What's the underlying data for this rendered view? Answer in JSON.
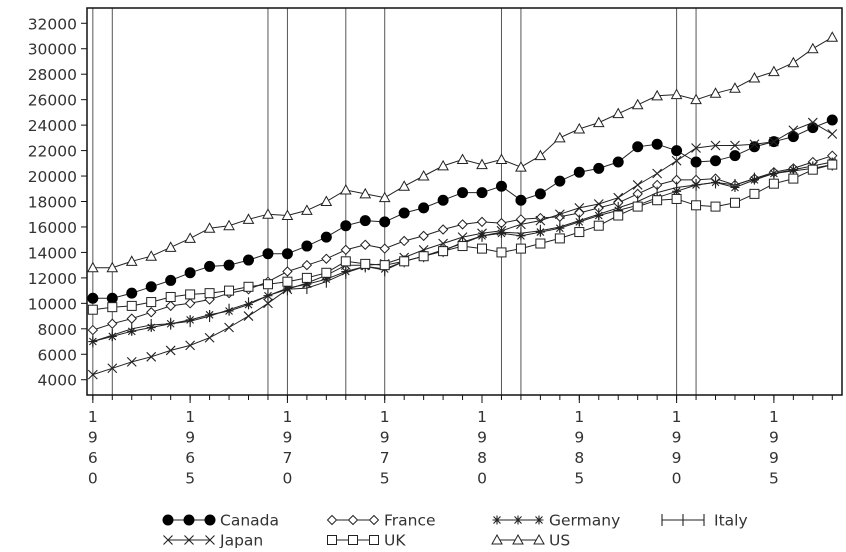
{
  "chart_data": {
    "type": "line",
    "title": "",
    "xlabel": "",
    "ylabel": "",
    "x": [
      1960,
      1961,
      1962,
      1963,
      1964,
      1965,
      1966,
      1967,
      1968,
      1969,
      1970,
      1971,
      1972,
      1973,
      1974,
      1975,
      1976,
      1977,
      1978,
      1979,
      1980,
      1981,
      1982,
      1983,
      1984,
      1985,
      1986,
      1987,
      1988,
      1989,
      1990,
      1991,
      1992,
      1993,
      1994,
      1995,
      1996,
      1997,
      1998
    ],
    "xlim": [
      1959.7,
      1998.5
    ],
    "ylim": [
      2800,
      33200
    ],
    "yticks": [
      4000,
      6000,
      8000,
      10000,
      12000,
      14000,
      16000,
      18000,
      20000,
      22000,
      24000,
      26000,
      28000,
      30000,
      32000
    ],
    "xticks": [
      {
        "value": 1960,
        "label": "1960"
      },
      {
        "value": 1965,
        "label": "1965"
      },
      {
        "value": 1970,
        "label": "1970"
      },
      {
        "value": 1975,
        "label": "1975"
      },
      {
        "value": 1980,
        "label": "1980"
      },
      {
        "value": 1985,
        "label": "1985"
      },
      {
        "value": 1990,
        "label": "1990"
      },
      {
        "value": 1995,
        "label": "1995"
      }
    ],
    "vlines": [
      1960.0,
      1961.0,
      1969.0,
      1970.0,
      1973.0,
      1975.0,
      1981.0,
      1982.0,
      1990.0,
      1991.0
    ],
    "legend_position": "bottom",
    "series": [
      {
        "name": "Canada",
        "marker": "filled-circle",
        "values": [
          10400,
          10400,
          10800,
          11300,
          11800,
          12400,
          12900,
          13000,
          13400,
          13900,
          13900,
          14500,
          15200,
          16100,
          16500,
          16400,
          17100,
          17500,
          18100,
          18700,
          18700,
          19200,
          18100,
          18600,
          19600,
          20300,
          20600,
          21100,
          22300,
          22500,
          22000,
          21100,
          21200,
          21600,
          22300,
          22700,
          23100,
          23800,
          24400
        ]
      },
      {
        "name": "France",
        "marker": "open-diamond",
        "values": [
          7900,
          8400,
          8800,
          9300,
          9800,
          10000,
          10300,
          10800,
          11100,
          11700,
          12500,
          13000,
          13500,
          14200,
          14600,
          14300,
          14900,
          15300,
          15800,
          16200,
          16400,
          16300,
          16600,
          16700,
          16800,
          17100,
          17500,
          17900,
          18600,
          19300,
          19700,
          19700,
          19800,
          19300,
          19800,
          20300,
          20600,
          21100,
          21600
        ]
      },
      {
        "name": "Germany",
        "marker": "asterisk",
        "values": [
          7000,
          7400,
          7800,
          8100,
          8400,
          8700,
          9100,
          9400,
          9900,
          10600,
          11200,
          11500,
          11900,
          12500,
          12900,
          12700,
          13300,
          13700,
          14200,
          14700,
          15300,
          15500,
          15300,
          15600,
          15900,
          16400,
          16900,
          17300,
          17700,
          18300,
          18800,
          19300,
          19500,
          19100,
          19700,
          20200,
          20500,
          20800,
          21100
        ]
      },
      {
        "name": "Italy",
        "marker": "plus",
        "values": [
          7000,
          7500,
          8000,
          8300,
          8400,
          8600,
          9000,
          9500,
          10000,
          10600,
          11100,
          11200,
          11700,
          12400,
          12900,
          12600,
          13300,
          13700,
          14100,
          14800,
          15300,
          15600,
          15500,
          15700,
          16000,
          16500,
          17000,
          17500,
          18000,
          18700,
          19100,
          19300,
          19500,
          19300,
          19800,
          20200,
          20400,
          20600,
          20900
        ]
      },
      {
        "name": "Japan",
        "marker": "x",
        "values": [
          4400,
          4900,
          5400,
          5800,
          6300,
          6700,
          7300,
          8100,
          9000,
          10000,
          11100,
          11600,
          12200,
          13000,
          13000,
          13100,
          13600,
          14200,
          14700,
          15200,
          15500,
          15700,
          16200,
          16500,
          17000,
          17500,
          17800,
          18300,
          19300,
          20200,
          21200,
          22200,
          22400,
          22400,
          22500,
          22700,
          23600,
          24200,
          23300
        ]
      },
      {
        "name": "UK",
        "marker": "open-square",
        "values": [
          9500,
          9700,
          9800,
          10100,
          10500,
          10700,
          10800,
          11000,
          11300,
          11500,
          11700,
          12000,
          12400,
          13300,
          13100,
          13000,
          13300,
          13700,
          14100,
          14500,
          14300,
          14000,
          14300,
          14700,
          15100,
          15600,
          16100,
          16900,
          17600,
          18100,
          18200,
          17700,
          17600,
          17900,
          18600,
          19400,
          19800,
          20500,
          20900
        ]
      },
      {
        "name": "US",
        "marker": "open-triangle",
        "values": [
          12800,
          12800,
          13300,
          13700,
          14400,
          15100,
          15900,
          16100,
          16600,
          17000,
          16900,
          17300,
          18000,
          18900,
          18600,
          18300,
          19200,
          20000,
          20800,
          21300,
          20900,
          21300,
          20700,
          21600,
          23000,
          23700,
          24200,
          24900,
          25600,
          26300,
          26400,
          26000,
          26500,
          26900,
          27700,
          28200,
          28900,
          30000,
          30900
        ]
      }
    ]
  }
}
